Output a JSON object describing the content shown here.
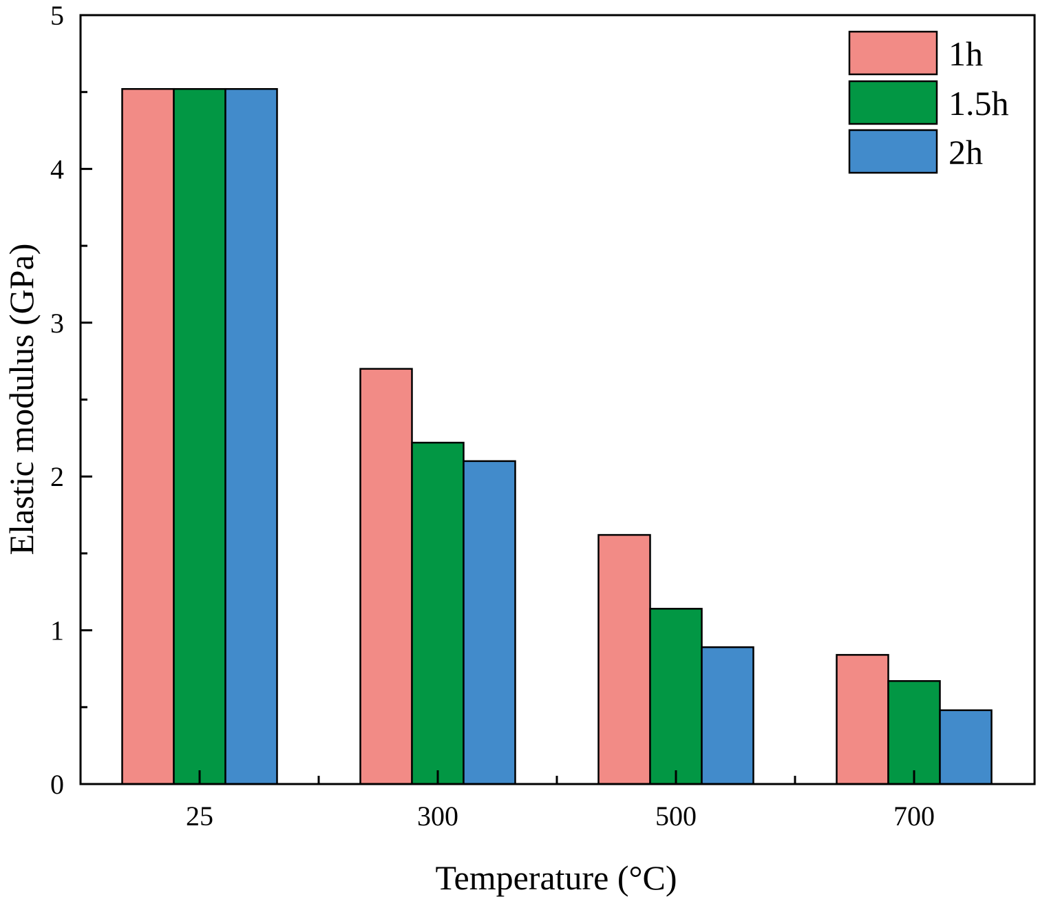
{
  "chart_data": {
    "type": "bar",
    "title": "",
    "xlabel": "Temperature (°C)",
    "ylabel": "Elastic modulus (GPa)",
    "categories": [
      "25",
      "300",
      "500",
      "700"
    ],
    "series": [
      {
        "name": "1h",
        "color": "#F28B86",
        "values": [
          4.52,
          2.7,
          1.62,
          0.84
        ]
      },
      {
        "name": "1.5h",
        "color": "#029744",
        "values": [
          4.52,
          2.22,
          1.14,
          0.67
        ]
      },
      {
        "name": "2h",
        "color": "#428BCB",
        "values": [
          4.52,
          2.1,
          0.89,
          0.48
        ]
      }
    ],
    "ylim": [
      0,
      5
    ],
    "yticks": [
      "0",
      "1",
      "2",
      "3",
      "4",
      "5"
    ],
    "grid": false,
    "legend_position": "top-right"
  }
}
